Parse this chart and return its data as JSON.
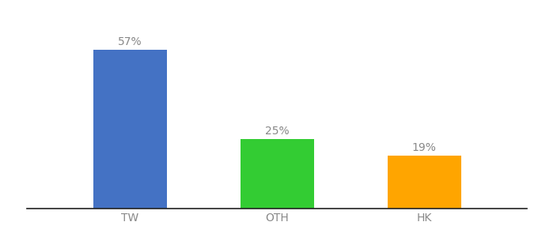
{
  "categories": [
    "TW",
    "OTH",
    "HK"
  ],
  "values": [
    57,
    25,
    19
  ],
  "labels": [
    "57%",
    "25%",
    "19%"
  ],
  "bar_colors": [
    "#4472C4",
    "#33CC33",
    "#FFA500"
  ],
  "ylim": [
    0,
    68
  ],
  "background_color": "#ffffff",
  "label_fontsize": 10,
  "tick_fontsize": 10,
  "bar_width": 0.5,
  "tick_color": "#888888",
  "label_color": "#888888"
}
